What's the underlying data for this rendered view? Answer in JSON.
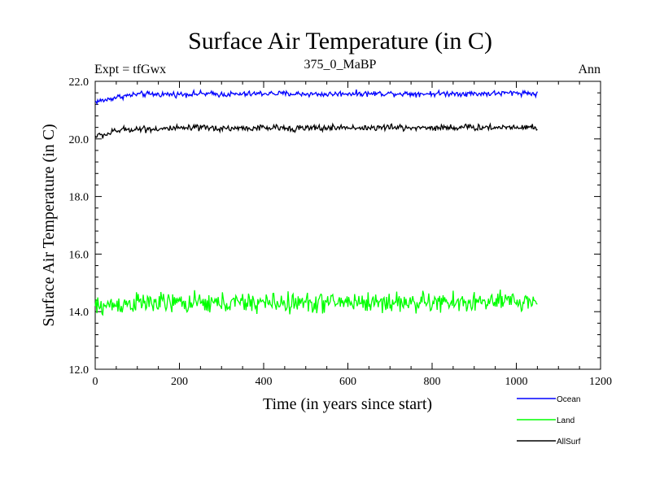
{
  "chart_data": {
    "type": "line",
    "title": "Surface Air Temperature (in C)",
    "subtitle": "375_0_MaBP",
    "left_label": "Expt = tfGwx",
    "right_label": "Ann",
    "xlabel": "Time (in years since start)",
    "ylabel": "Surface Air Temperature (in C)",
    "xlim": [
      0,
      1200
    ],
    "ylim": [
      12.0,
      22.0
    ],
    "xticks": [
      0,
      200,
      400,
      600,
      800,
      1000,
      1200
    ],
    "xtick_labels": [
      "0",
      "200",
      "400",
      "600",
      "800",
      "1000",
      "1200"
    ],
    "yticks": [
      12.0,
      14.0,
      16.0,
      18.0,
      20.0,
      22.0
    ],
    "ytick_labels": [
      "12.0",
      "14.0",
      "16.0",
      "18.0",
      "20.0",
      "22.0"
    ],
    "grid": false,
    "legend_position": "bottom-right",
    "series": [
      {
        "name": "Ocean",
        "color": "#0000ff",
        "x": [
          0,
          25,
          50,
          75,
          100,
          150,
          200,
          250,
          300,
          350,
          400,
          450,
          500,
          550,
          600,
          650,
          700,
          750,
          800,
          850,
          900,
          950,
          1000,
          1025,
          1050
        ],
        "values": [
          21.3,
          21.35,
          21.45,
          21.5,
          21.55,
          21.55,
          21.55,
          21.57,
          21.55,
          21.55,
          21.58,
          21.57,
          21.56,
          21.55,
          21.58,
          21.57,
          21.58,
          21.57,
          21.57,
          21.58,
          21.57,
          21.58,
          21.6,
          21.6,
          21.55
        ],
        "noise": 0.06
      },
      {
        "name": "Land",
        "color": "#00ff00",
        "x": [
          0,
          25,
          50,
          75,
          100,
          150,
          200,
          250,
          300,
          350,
          400,
          450,
          500,
          550,
          600,
          650,
          700,
          750,
          800,
          850,
          900,
          950,
          1000,
          1025,
          1050
        ],
        "values": [
          14.15,
          14.2,
          14.25,
          14.28,
          14.3,
          14.3,
          14.3,
          14.28,
          14.3,
          14.3,
          14.32,
          14.3,
          14.3,
          14.32,
          14.35,
          14.32,
          14.33,
          14.32,
          14.32,
          14.3,
          14.33,
          14.33,
          14.35,
          14.35,
          14.35
        ],
        "noise": 0.22
      },
      {
        "name": "AllSurf",
        "color": "#000000",
        "x": [
          0,
          25,
          50,
          75,
          100,
          150,
          200,
          250,
          300,
          350,
          400,
          450,
          500,
          550,
          600,
          650,
          700,
          750,
          800,
          850,
          900,
          950,
          1000,
          1025,
          1050
        ],
        "values": [
          20.1,
          20.15,
          20.28,
          20.33,
          20.35,
          20.35,
          20.36,
          20.38,
          20.37,
          20.37,
          20.38,
          20.38,
          20.37,
          20.38,
          20.4,
          20.38,
          20.4,
          20.39,
          20.39,
          20.4,
          20.4,
          20.4,
          20.42,
          20.42,
          20.38
        ],
        "noise": 0.07
      }
    ]
  }
}
